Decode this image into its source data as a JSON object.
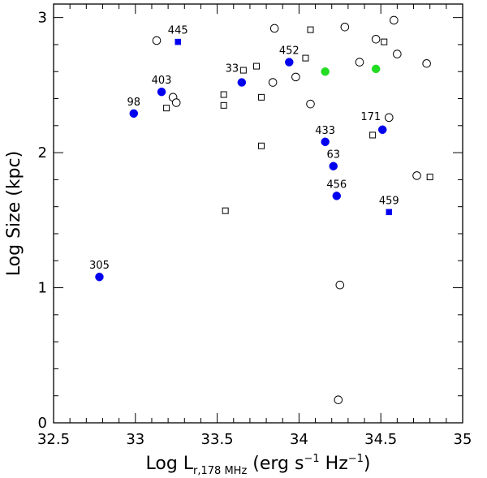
{
  "chart_data": {
    "type": "scatter",
    "title": "",
    "xlabel": {
      "prefix": "Log L",
      "subscript": "r,178 MHz",
      "units_start": " (erg s",
      "sup1": "−1",
      "units_mid": " Hz",
      "sup2": "−1",
      "units_end": ")"
    },
    "ylabel": "Log Size (kpc)",
    "xlim": [
      32.5,
      35
    ],
    "ylim": [
      0,
      3.1
    ],
    "xticks": [
      {
        "value": 32.5,
        "label": "32.5"
      },
      {
        "value": 33,
        "label": "33"
      },
      {
        "value": 33.5,
        "label": "33.5"
      },
      {
        "value": 34,
        "label": "34"
      },
      {
        "value": 34.5,
        "label": "34.5"
      },
      {
        "value": 35,
        "label": "35"
      }
    ],
    "yticks": [
      {
        "value": 0,
        "label": "0"
      },
      {
        "value": 1,
        "label": "1"
      },
      {
        "value": 2,
        "label": "2"
      },
      {
        "value": 3,
        "label": "3"
      }
    ],
    "colors": {
      "blue": "#0000ee",
      "green": "#22dd22",
      "outline": "#000000"
    },
    "series": [
      {
        "name": "filled-blue-circles",
        "marker": "filled-circle",
        "color": "#0000ee",
        "points": [
          {
            "x": 32.78,
            "y": 1.08,
            "label": "305"
          },
          {
            "x": 32.99,
            "y": 2.29,
            "label": "98"
          },
          {
            "x": 33.16,
            "y": 2.45,
            "label": "403"
          },
          {
            "x": 33.65,
            "y": 2.52,
            "label": "33"
          },
          {
            "x": 33.94,
            "y": 2.67,
            "label": "452"
          },
          {
            "x": 34.16,
            "y": 2.08,
            "label": "433"
          },
          {
            "x": 34.21,
            "y": 1.9,
            "label": "63"
          },
          {
            "x": 34.23,
            "y": 1.68,
            "label": "456"
          },
          {
            "x": 34.51,
            "y": 2.17,
            "label": "171"
          }
        ]
      },
      {
        "name": "filled-blue-squares",
        "marker": "filled-square",
        "color": "#0000ee",
        "points": [
          {
            "x": 33.26,
            "y": 2.82,
            "label": "445"
          },
          {
            "x": 34.55,
            "y": 1.56,
            "label": "459"
          }
        ]
      },
      {
        "name": "filled-green-circles",
        "marker": "filled-circle",
        "color": "#22dd22",
        "points": [
          {
            "x": 34.16,
            "y": 2.6,
            "label": ""
          },
          {
            "x": 34.47,
            "y": 2.62,
            "label": ""
          }
        ]
      },
      {
        "name": "open-circles",
        "marker": "open-circle",
        "color": "#000000",
        "points": [
          {
            "x": 33.13,
            "y": 2.83
          },
          {
            "x": 33.23,
            "y": 2.41
          },
          {
            "x": 33.25,
            "y": 2.37
          },
          {
            "x": 33.84,
            "y": 2.52
          },
          {
            "x": 33.85,
            "y": 2.92
          },
          {
            "x": 33.98,
            "y": 2.56
          },
          {
            "x": 34.07,
            "y": 2.36
          },
          {
            "x": 34.28,
            "y": 2.93
          },
          {
            "x": 34.37,
            "y": 2.67
          },
          {
            "x": 34.47,
            "y": 2.84
          },
          {
            "x": 34.55,
            "y": 2.26
          },
          {
            "x": 34.58,
            "y": 2.98
          },
          {
            "x": 34.6,
            "y": 2.73
          },
          {
            "x": 34.72,
            "y": 1.83
          },
          {
            "x": 34.78,
            "y": 2.66
          },
          {
            "x": 34.25,
            "y": 1.02
          },
          {
            "x": 34.24,
            "y": 0.17
          }
        ]
      },
      {
        "name": "open-squares",
        "marker": "open-square",
        "color": "#000000",
        "points": [
          {
            "x": 33.19,
            "y": 2.33
          },
          {
            "x": 33.54,
            "y": 2.43
          },
          {
            "x": 33.54,
            "y": 2.35
          },
          {
            "x": 33.55,
            "y": 1.57
          },
          {
            "x": 33.66,
            "y": 2.61
          },
          {
            "x": 33.74,
            "y": 2.64
          },
          {
            "x": 33.77,
            "y": 2.41
          },
          {
            "x": 33.77,
            "y": 2.05
          },
          {
            "x": 34.04,
            "y": 2.7
          },
          {
            "x": 34.07,
            "y": 2.91
          },
          {
            "x": 34.45,
            "y": 2.13
          },
          {
            "x": 34.52,
            "y": 2.82
          },
          {
            "x": 34.8,
            "y": 1.82
          }
        ]
      }
    ]
  }
}
